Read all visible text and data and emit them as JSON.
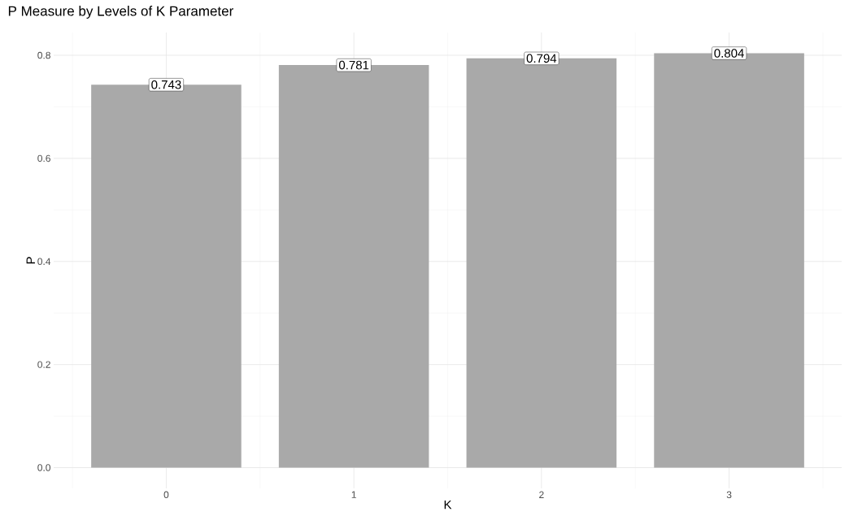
{
  "chart_data": {
    "type": "bar",
    "title": "P Measure by Levels of K Parameter",
    "xlabel": "K",
    "ylabel": "P",
    "categories": [
      "0",
      "1",
      "2",
      "3"
    ],
    "values": [
      0.743,
      0.781,
      0.794,
      0.804
    ],
    "color": "#a9a9a9",
    "ylim": [
      -0.0402,
      0.8442
    ],
    "yticks": [
      {
        "value": 0,
        "label": "0.0"
      },
      {
        "value": 0.2,
        "label": "0.2"
      },
      {
        "value": 0.4,
        "label": "0.4"
      },
      {
        "value": 0.6,
        "label": "0.6"
      },
      {
        "value": 0.8,
        "label": "0.8"
      }
    ],
    "grid": true,
    "data_labels": true
  }
}
